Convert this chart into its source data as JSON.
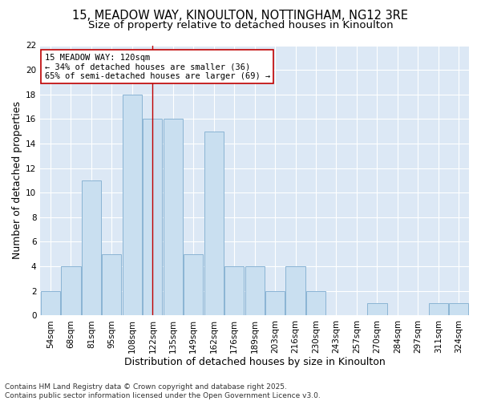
{
  "title_line1": "15, MEADOW WAY, KINOULTON, NOTTINGHAM, NG12 3RE",
  "title_line2": "Size of property relative to detached houses in Kinoulton",
  "xlabel": "Distribution of detached houses by size in Kinoulton",
  "ylabel": "Number of detached properties",
  "categories": [
    "54sqm",
    "68sqm",
    "81sqm",
    "95sqm",
    "108sqm",
    "122sqm",
    "135sqm",
    "149sqm",
    "162sqm",
    "176sqm",
    "189sqm",
    "203sqm",
    "216sqm",
    "230sqm",
    "243sqm",
    "257sqm",
    "270sqm",
    "284sqm",
    "297sqm",
    "311sqm",
    "324sqm"
  ],
  "values": [
    2,
    4,
    11,
    5,
    18,
    16,
    16,
    5,
    15,
    4,
    4,
    2,
    4,
    2,
    0,
    0,
    1,
    0,
    0,
    1,
    1
  ],
  "bar_color": "#c9dff0",
  "bar_edge_color": "#8ab4d4",
  "vline_index": 5,
  "vline_color": "#c00000",
  "ylim": [
    0,
    22
  ],
  "yticks": [
    0,
    2,
    4,
    6,
    8,
    10,
    12,
    14,
    16,
    18,
    20,
    22
  ],
  "annotation_title": "15 MEADOW WAY: 120sqm",
  "annotation_line2": "← 34% of detached houses are smaller (36)",
  "annotation_line3": "65% of semi-detached houses are larger (69) →",
  "annotation_box_facecolor": "#ffffff",
  "annotation_box_edgecolor": "#c00000",
  "plot_bg_color": "#dce8f5",
  "fig_bg_color": "#ffffff",
  "grid_color": "#ffffff",
  "footer_line1": "Contains HM Land Registry data © Crown copyright and database right 2025.",
  "footer_line2": "Contains public sector information licensed under the Open Government Licence v3.0.",
  "title_fontsize": 10.5,
  "subtitle_fontsize": 9.5,
  "axis_label_fontsize": 9,
  "tick_fontsize": 7.5,
  "annotation_fontsize": 7.5,
  "footer_fontsize": 6.5
}
